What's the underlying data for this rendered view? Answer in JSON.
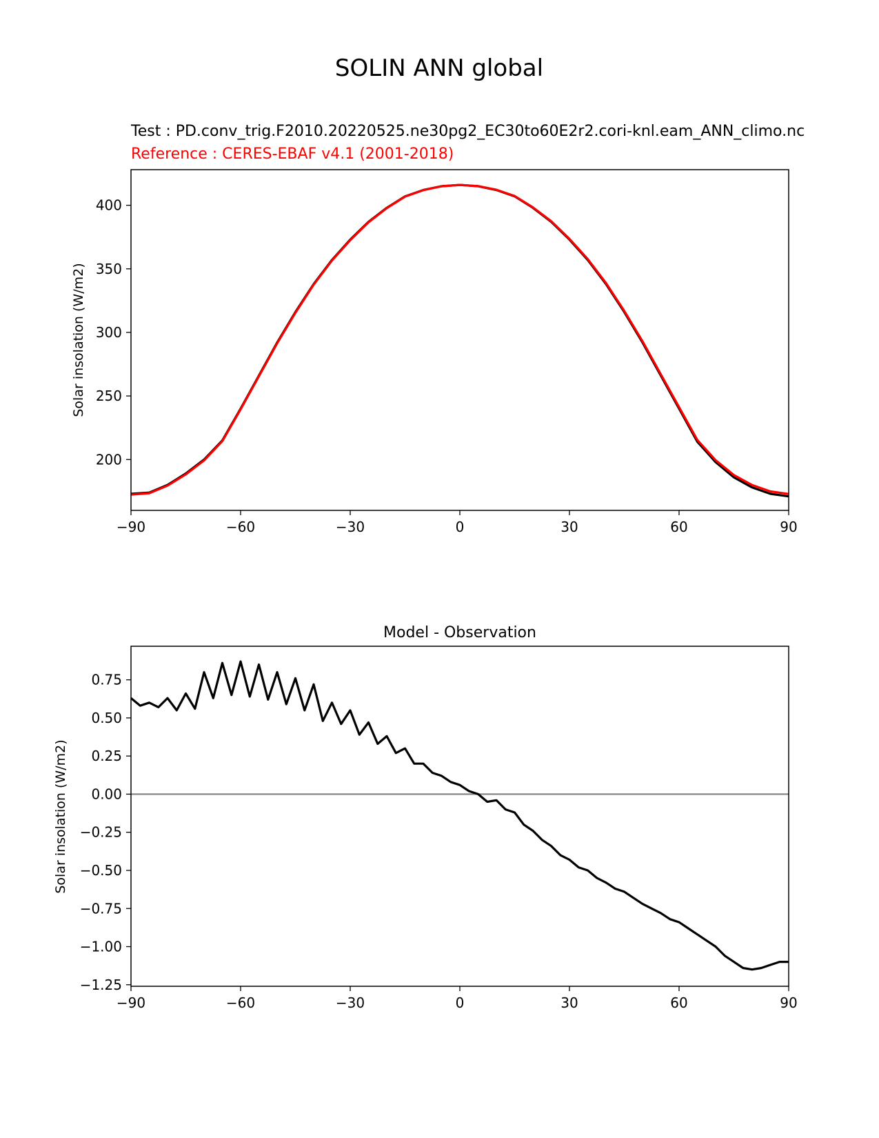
{
  "figure": {
    "title": "SOLIN ANN global"
  },
  "colors": {
    "test": "#000000",
    "reference": "#ff0000",
    "zero_line": "#808080"
  },
  "chart_data": [
    {
      "type": "line",
      "test_label": "Test : PD.conv_trig.F2010.20220525.ne30pg2_EC30to60E2r2.cori-knl.eam_ANN_climo.nc",
      "reference_label": "Reference : CERES-EBAF v4.1 (2001-2018)",
      "title": "",
      "xlabel": "",
      "ylabel": "Solar insolation (W/m2)",
      "xlim": [
        -90,
        90
      ],
      "ylim": [
        160,
        428
      ],
      "xticks": [
        -90,
        -60,
        -30,
        0,
        30,
        60,
        90
      ],
      "xtick_labels": [
        "−90",
        "−60",
        "−30",
        "0",
        "30",
        "60",
        "90"
      ],
      "yticks": [
        200,
        250,
        300,
        350,
        400
      ],
      "ytick_labels": [
        "200",
        "250",
        "300",
        "350",
        "400"
      ],
      "grid": false,
      "series": [
        {
          "role": "test",
          "x": [
            -90,
            -85,
            -80,
            -75,
            -70,
            -65,
            -60,
            -55,
            -50,
            -45,
            -40,
            -35,
            -30,
            -25,
            -20,
            -15,
            -10,
            -5,
            0,
            5,
            10,
            15,
            20,
            25,
            30,
            35,
            40,
            45,
            50,
            55,
            60,
            65,
            70,
            75,
            80,
            85,
            90
          ],
          "values": [
            173,
            174,
            180,
            189,
            200,
            215,
            240,
            266,
            292,
            316,
            338,
            357,
            373,
            387,
            398,
            407,
            412,
            415,
            416,
            415,
            412,
            407,
            398,
            387,
            373,
            357,
            338,
            316,
            292,
            266,
            240,
            214,
            198,
            186,
            178,
            173,
            171
          ]
        },
        {
          "role": "reference",
          "x": [
            -90,
            -85,
            -80,
            -75,
            -70,
            -65,
            -60,
            -55,
            -50,
            -45,
            -40,
            -35,
            -30,
            -25,
            -20,
            -15,
            -10,
            -5,
            0,
            5,
            10,
            15,
            20,
            25,
            30,
            35,
            40,
            45,
            50,
            55,
            60,
            65,
            70,
            75,
            80,
            85,
            90
          ],
          "values": [
            172.4,
            173.5,
            179.4,
            188.3,
            199.3,
            214.4,
            239.4,
            265.4,
            291.4,
            315.4,
            337.5,
            356.5,
            372.5,
            386.6,
            397.7,
            406.8,
            411.9,
            414.9,
            416,
            415.1,
            412.2,
            407.3,
            398.4,
            387.5,
            373.6,
            357.7,
            338.8,
            316.9,
            293,
            267.1,
            241.2,
            215.4,
            199.5,
            187.8,
            179.9,
            174.9,
            172.9
          ]
        }
      ]
    },
    {
      "type": "line",
      "title": "Model - Observation",
      "xlabel": "",
      "ylabel": "Solar insolation (W/m2)",
      "xlim": [
        -90,
        90
      ],
      "ylim": [
        -1.26,
        0.97
      ],
      "xticks": [
        -90,
        -60,
        -30,
        0,
        30,
        60,
        90
      ],
      "xtick_labels": [
        "−90",
        "−60",
        "−30",
        "0",
        "30",
        "60",
        "90"
      ],
      "yticks": [
        -1.25,
        -1.0,
        -0.75,
        -0.5,
        -0.25,
        0.0,
        0.25,
        0.5,
        0.75
      ],
      "ytick_labels": [
        "−1.25",
        "−1.00",
        "−0.75",
        "−0.50",
        "−0.25",
        "0.00",
        "0.25",
        "0.50",
        "0.75"
      ],
      "grid": false,
      "zero_line": true,
      "series": [
        {
          "role": "difference",
          "x": [
            -90,
            -87.5,
            -85,
            -82.5,
            -80,
            -77.5,
            -75,
            -72.5,
            -70,
            -67.5,
            -65,
            -62.5,
            -60,
            -57.5,
            -55,
            -52.5,
            -50,
            -47.5,
            -45,
            -42.5,
            -40,
            -37.5,
            -35,
            -32.5,
            -30,
            -27.5,
            -25,
            -22.5,
            -20,
            -17.5,
            -15,
            -12.5,
            -10,
            -7.5,
            -5,
            -2.5,
            0,
            2.5,
            5,
            7.5,
            10,
            12.5,
            15,
            17.5,
            20,
            22.5,
            25,
            27.5,
            30,
            32.5,
            35,
            37.5,
            40,
            42.5,
            45,
            47.5,
            50,
            52.5,
            55,
            57.5,
            60,
            62.5,
            65,
            67.5,
            70,
            72.5,
            75,
            77.5,
            80,
            82.5,
            85,
            87.5,
            90
          ],
          "values": [
            0.63,
            0.58,
            0.6,
            0.57,
            0.63,
            0.55,
            0.66,
            0.56,
            0.8,
            0.63,
            0.86,
            0.65,
            0.87,
            0.64,
            0.85,
            0.62,
            0.8,
            0.59,
            0.76,
            0.55,
            0.72,
            0.48,
            0.6,
            0.46,
            0.55,
            0.39,
            0.47,
            0.33,
            0.38,
            0.27,
            0.3,
            0.2,
            0.2,
            0.14,
            0.12,
            0.08,
            0.06,
            0.02,
            0.0,
            -0.05,
            -0.04,
            -0.1,
            -0.12,
            -0.2,
            -0.24,
            -0.3,
            -0.34,
            -0.4,
            -0.43,
            -0.48,
            -0.5,
            -0.55,
            -0.58,
            -0.62,
            -0.64,
            -0.68,
            -0.72,
            -0.75,
            -0.78,
            -0.82,
            -0.84,
            -0.88,
            -0.92,
            -0.96,
            -1.0,
            -1.06,
            -1.1,
            -1.14,
            -1.15,
            -1.14,
            -1.12,
            -1.1,
            -1.1
          ]
        }
      ]
    }
  ]
}
